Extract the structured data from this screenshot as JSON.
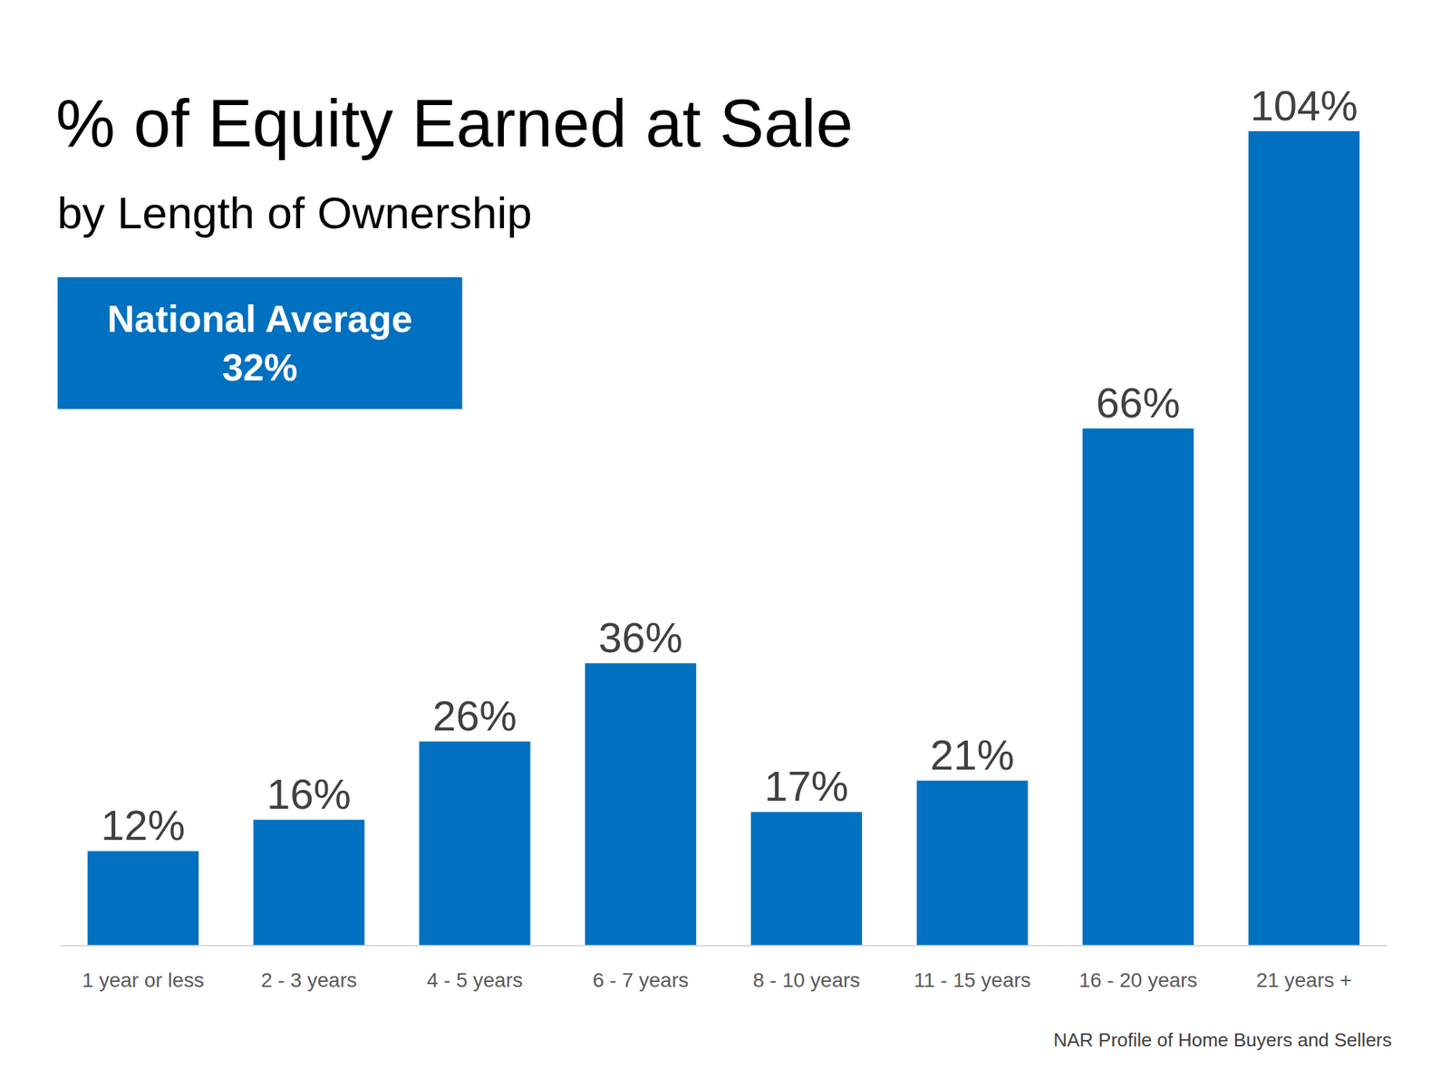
{
  "chart_data": {
    "type": "bar",
    "title": "% of Equity Earned at Sale",
    "subtitle": "by Length of Ownership",
    "annotations": [
      {
        "lines": [
          "National Average",
          "32%"
        ]
      }
    ],
    "source": "NAR Profile of Home Buyers and Sellers",
    "categories": [
      "1 year or less",
      "2 - 3 years",
      "4 - 5 years",
      "6 - 7 years",
      "8 - 10 years",
      "11 - 15 years",
      "16 - 20 years",
      "21 years +"
    ],
    "values": [
      12,
      16,
      26,
      36,
      17,
      21,
      66,
      104
    ],
    "value_labels": [
      "12%",
      "16%",
      "26%",
      "36%",
      "17%",
      "21%",
      "66%",
      "104%"
    ],
    "color": "#0070c0",
    "ylim": [
      0,
      104
    ],
    "grid": false,
    "data_labels": true,
    "tick_labels": "x"
  }
}
